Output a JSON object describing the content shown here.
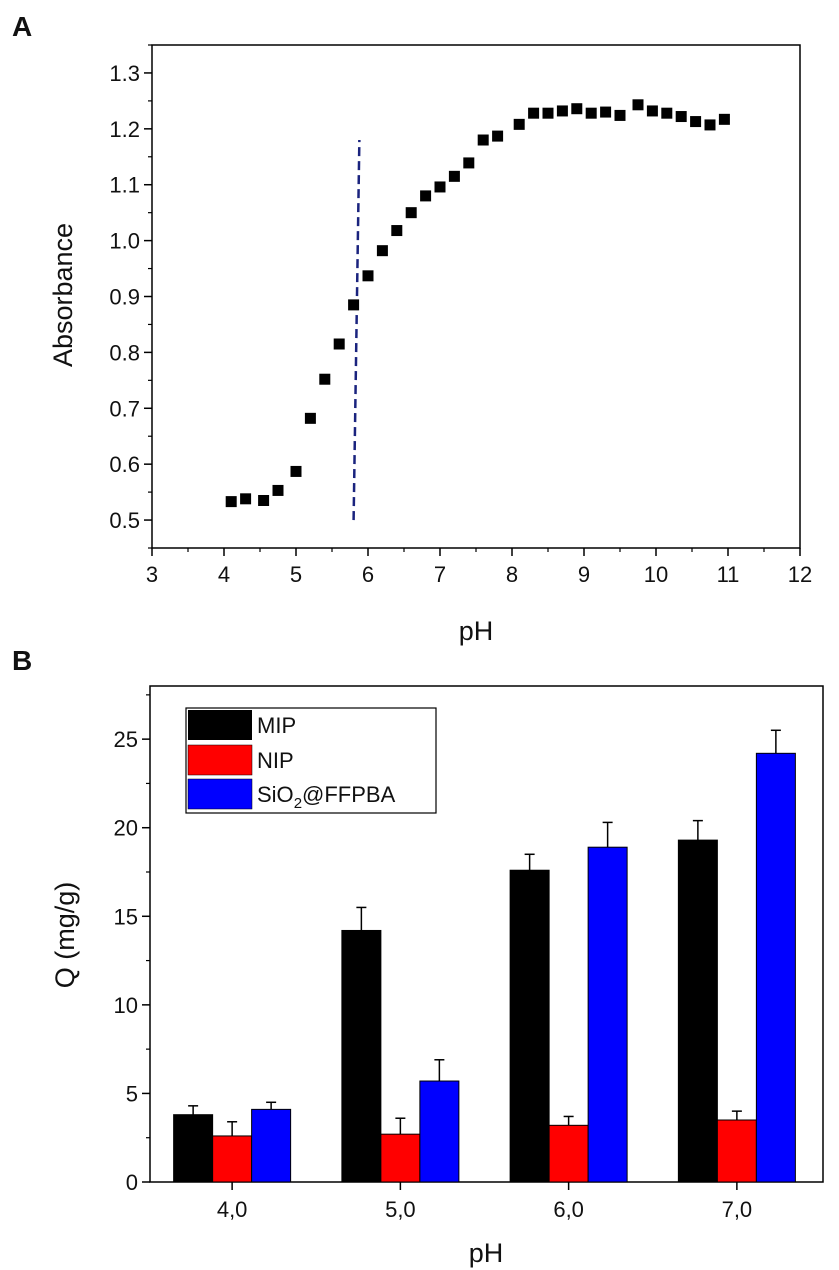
{
  "chart_data": [
    {
      "panel": "A",
      "type": "scatter",
      "title": "",
      "xlabel": "pH",
      "ylabel": "Absorbance",
      "xlim": [
        3,
        12
      ],
      "ylim": [
        0.45,
        1.35
      ],
      "xticks": [
        "3",
        "4",
        "5",
        "6",
        "7",
        "8",
        "9",
        "10",
        "11",
        "12"
      ],
      "yticks": [
        "0.5",
        "0.6",
        "0.7",
        "0.8",
        "0.9",
        "1.0",
        "1.1",
        "1.2",
        "1.3"
      ],
      "x": [
        4.1,
        4.3,
        4.55,
        4.75,
        5.0,
        5.2,
        5.4,
        5.6,
        5.8,
        6.0,
        6.2,
        6.4,
        6.6,
        6.8,
        7.0,
        7.2,
        7.4,
        7.6,
        7.8,
        8.1,
        8.3,
        8.5,
        8.7,
        8.9,
        9.1,
        9.3,
        9.5,
        9.75,
        9.95,
        10.15,
        10.35,
        10.55,
        10.75,
        10.95
      ],
      "y": [
        0.533,
        0.538,
        0.535,
        0.553,
        0.587,
        0.682,
        0.752,
        0.815,
        0.885,
        0.937,
        0.982,
        1.018,
        1.05,
        1.08,
        1.096,
        1.115,
        1.139,
        1.18,
        1.187,
        1.208,
        1.228,
        1.228,
        1.232,
        1.236,
        1.228,
        1.23,
        1.224,
        1.243,
        1.232,
        1.228,
        1.222,
        1.213,
        1.207,
        1.217
      ],
      "marker": "square",
      "marker_color": "#000000",
      "vline": {
        "x_bottom": 5.8,
        "x_top": 5.88,
        "y_bottom": 0.5,
        "y_top": 1.18,
        "style": "dashed",
        "color": "#1a237e"
      }
    },
    {
      "panel": "B",
      "type": "bar",
      "title": "",
      "xlabel": "pH",
      "ylabel": "Q (mg/g)",
      "ylim": [
        0,
        28
      ],
      "yticks": [
        "0",
        "5",
        "10",
        "15",
        "20",
        "25"
      ],
      "categories": [
        "4,0",
        "5,0",
        "6,0",
        "7,0"
      ],
      "series": [
        {
          "name": "MIP",
          "color": "#000000",
          "values": [
            3.8,
            14.2,
            17.6,
            19.3
          ],
          "errors": [
            0.5,
            1.3,
            0.9,
            1.1
          ]
        },
        {
          "name": "NIP",
          "color": "#ff0000",
          "values": [
            2.6,
            2.7,
            3.2,
            3.5
          ],
          "errors": [
            0.8,
            0.9,
            0.5,
            0.5
          ]
        },
        {
          "name": "SiO2@FFPBA",
          "color": "#0000ff",
          "values": [
            4.1,
            5.7,
            18.9,
            24.2
          ],
          "errors": [
            0.4,
            1.2,
            1.4,
            1.3
          ]
        }
      ],
      "legend": {
        "position": "top-left",
        "entries": [
          {
            "label": "MIP"
          },
          {
            "label": "NIP"
          },
          {
            "label_parts": [
              "SiO",
              "2",
              "@FFPBA"
            ]
          }
        ]
      }
    }
  ]
}
